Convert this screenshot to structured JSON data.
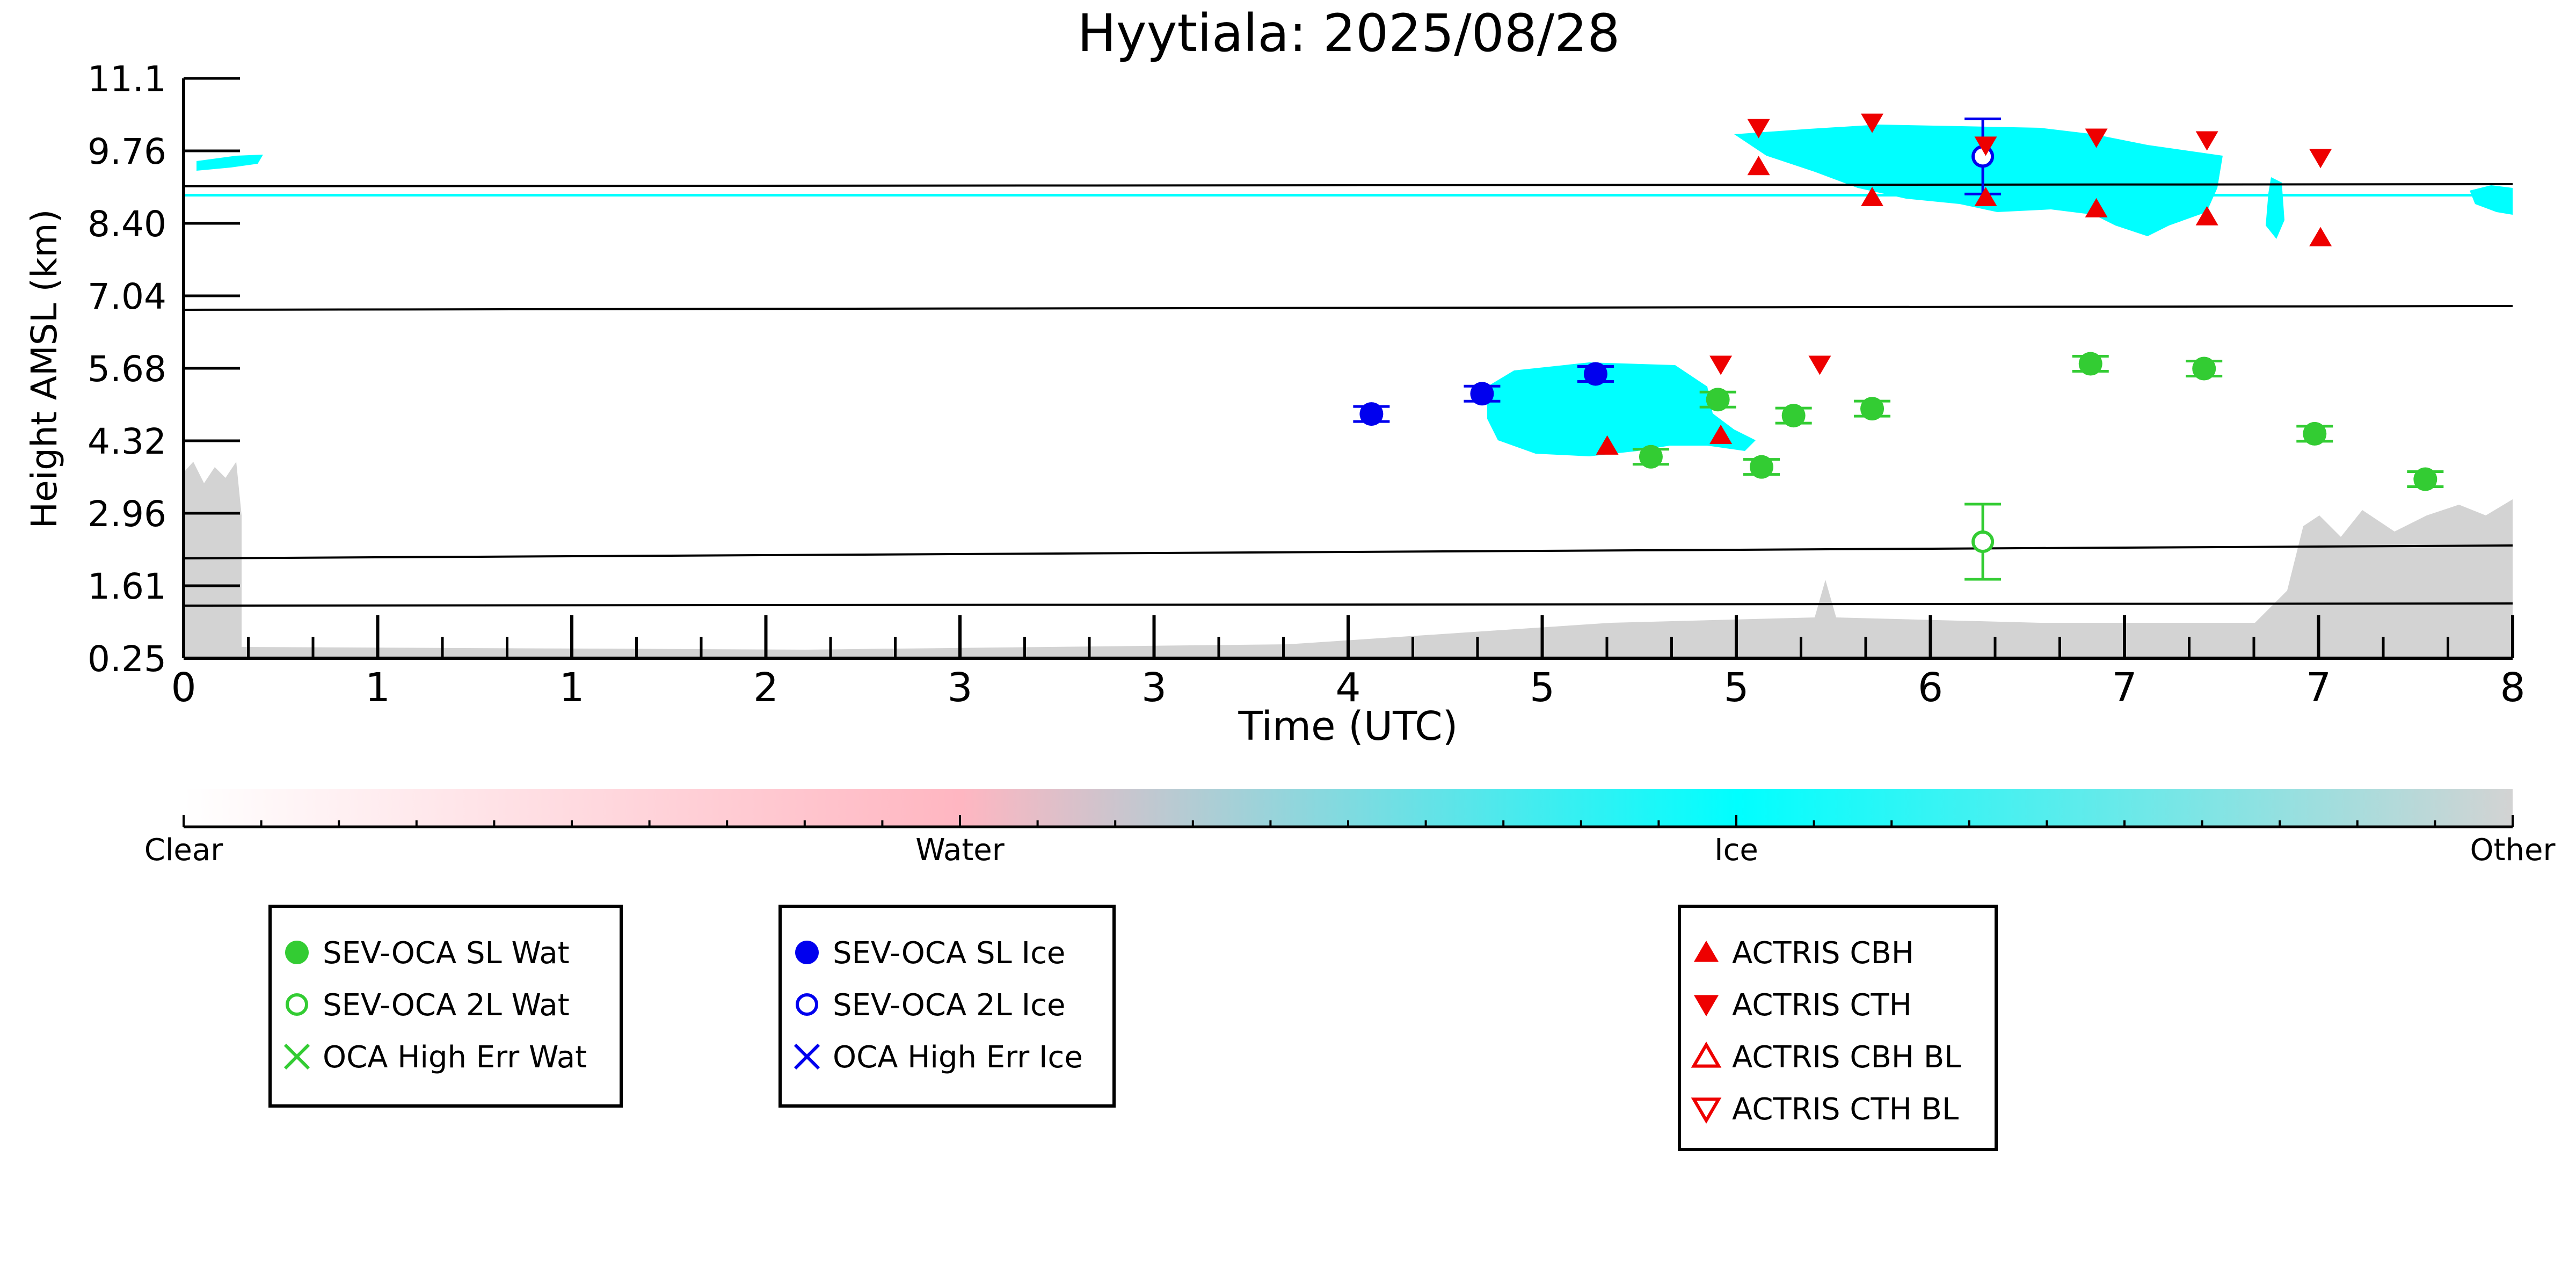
{
  "chart_data": {
    "type": "scatter",
    "title": "Hyytiala: 2025/08/28",
    "xlabel": "Time (UTC)",
    "ylabel": "Height AMSL (km)",
    "xlim": [
      0,
      8
    ],
    "ylim": [
      0.25,
      11.1
    ],
    "x_tick_labels": [
      "0",
      "1",
      "1",
      "2",
      "3",
      "3",
      "4",
      "5",
      "5",
      "6",
      "7",
      "7",
      "8"
    ],
    "y_tick_labels": [
      "0.25",
      "1.61",
      "2.96",
      "4.32",
      "5.68",
      "7.04",
      "8.40",
      "9.76",
      "11.1"
    ],
    "grid": false,
    "colorbar": {
      "labels": [
        "Clear",
        "Water",
        "Ice",
        "Other"
      ],
      "colors": {
        "clear": "#ffffff",
        "water": "#ffb6c1",
        "ice": "#00ffff",
        "other": "#d3d3d3"
      }
    },
    "series": [
      {
        "name": "SEV-OCA SL Wat",
        "marker": "filled-circle",
        "color": "#33cc33",
        "points": [
          [
            5.27,
            5.09
          ],
          [
            5.53,
            4.79
          ],
          [
            5.04,
            4.02
          ],
          [
            5.42,
            3.83
          ],
          [
            5.8,
            4.92
          ],
          [
            6.55,
            5.76
          ],
          [
            6.94,
            5.67
          ],
          [
            7.32,
            4.45
          ],
          [
            7.7,
            3.6
          ]
        ]
      },
      {
        "name": "SEV-OCA 2L Wat",
        "marker": "open-circle",
        "color": "#33cc33",
        "points": [
          [
            6.18,
            2.43
          ]
        ]
      },
      {
        "name": "OCA High Err Wat",
        "marker": "x",
        "color": "#33cc33",
        "points": []
      },
      {
        "name": "SEV-OCA SL Ice",
        "marker": "filled-circle",
        "color": "#0000ee",
        "points": [
          [
            4.08,
            4.82
          ],
          [
            4.46,
            5.2
          ],
          [
            4.85,
            5.57
          ]
        ]
      },
      {
        "name": "SEV-OCA 2L Ice",
        "marker": "open-circle",
        "color": "#0000ee",
        "points": [
          [
            6.18,
            9.64
          ]
        ]
      },
      {
        "name": "OCA High Err Ice",
        "marker": "x",
        "color": "#0000ee",
        "points": []
      },
      {
        "name": "ACTRIS CBH",
        "marker": "triangle-up",
        "color": "#ee0000",
        "points": [
          [
            4.89,
            4.22
          ],
          [
            5.28,
            4.42
          ],
          [
            5.41,
            9.45
          ],
          [
            5.8,
            8.87
          ],
          [
            6.19,
            8.87
          ],
          [
            6.57,
            8.66
          ],
          [
            6.95,
            8.51
          ],
          [
            7.34,
            8.12
          ]
        ]
      },
      {
        "name": "ACTRIS CTH",
        "marker": "triangle-down",
        "color": "#ee0000",
        "points": [
          [
            5.28,
            5.75
          ],
          [
            5.62,
            5.75
          ],
          [
            5.41,
            10.18
          ],
          [
            5.8,
            10.28
          ],
          [
            6.19,
            9.85
          ],
          [
            6.57,
            10.0
          ],
          [
            6.95,
            9.95
          ],
          [
            7.34,
            9.62
          ]
        ]
      },
      {
        "name": "ACTRIS CBH BL",
        "marker": "open-triangle-up",
        "color": "#ee0000",
        "points": []
      },
      {
        "name": "ACTRIS CTH BL",
        "marker": "open-triangle-down",
        "color": "#ee0000",
        "points": []
      }
    ],
    "legends": [
      {
        "entries": [
          "SEV-OCA SL Wat",
          "SEV-OCA 2L Wat",
          "OCA High Err Wat"
        ]
      },
      {
        "entries": [
          "SEV-OCA SL Ice",
          "SEV-OCA 2L Ice",
          "OCA High Err Ice"
        ]
      },
      {
        "entries": [
          "ACTRIS CBH",
          "ACTRIS CTH",
          "ACTRIS CBH BL",
          "ACTRIS CTH BL"
        ]
      }
    ]
  }
}
